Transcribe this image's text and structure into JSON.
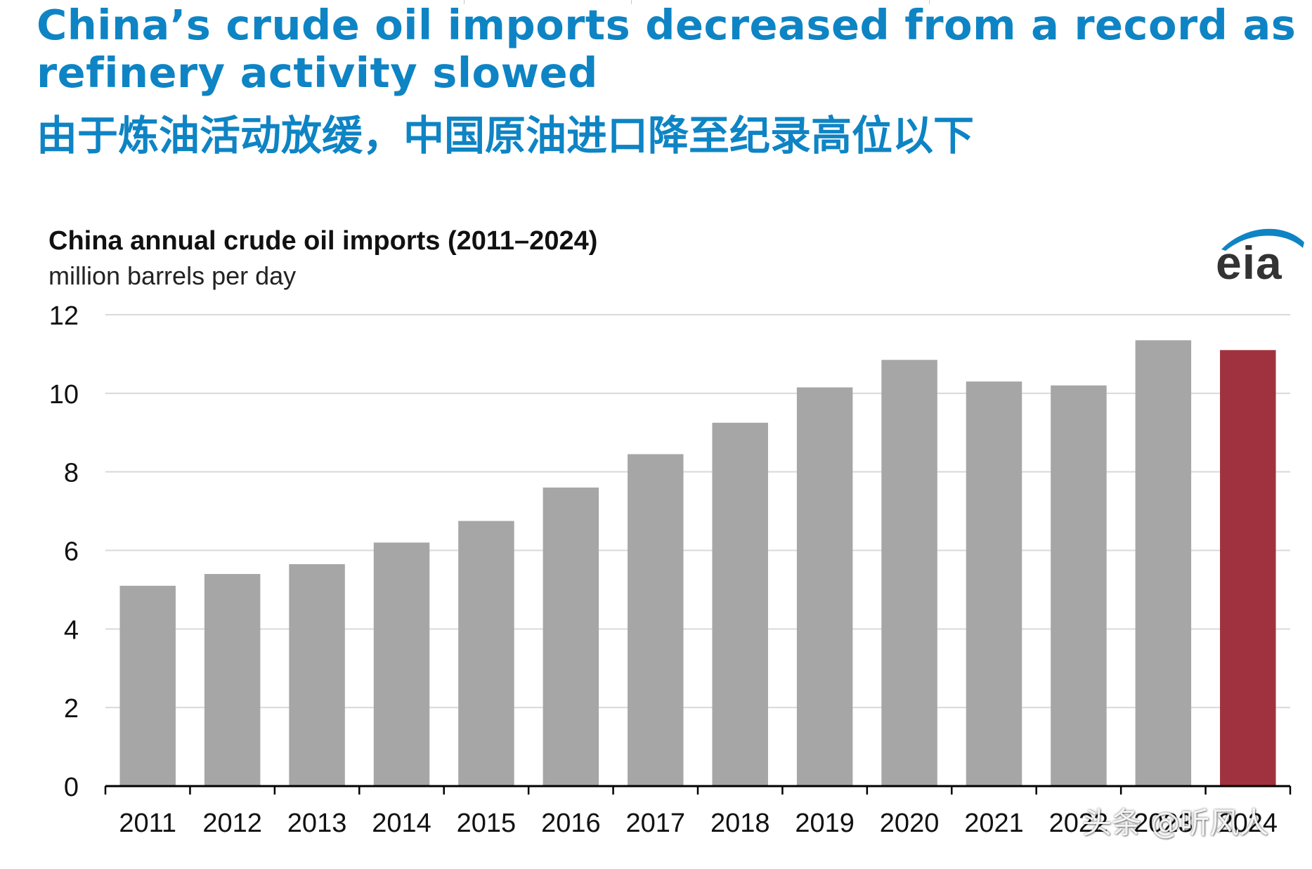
{
  "header": {
    "headline_en": "China’s crude oil imports decreased from a record as refinery activity slowed",
    "headline_zh": "由于炼油活动放缓，中国原油进口降至纪录高位以下"
  },
  "logo": {
    "text": "eia"
  },
  "watermark": {
    "text": "头条 @听风人"
  },
  "colors": {
    "headline": "#0e84c4",
    "bar_default": "#a6a6a6",
    "bar_highlight": "#a03240",
    "gridline": "#d9d9d9",
    "axis": "#000000"
  },
  "chart_data": {
    "type": "bar",
    "title": "China annual crude oil imports (2011–2024)",
    "subtitle": "million barrels per day",
    "categories": [
      "2011",
      "2012",
      "2013",
      "2014",
      "2015",
      "2016",
      "2017",
      "2018",
      "2019",
      "2020",
      "2021",
      "2022",
      "2023",
      "2024"
    ],
    "values": [
      5.1,
      5.4,
      5.65,
      6.2,
      6.75,
      7.6,
      8.45,
      9.25,
      10.15,
      10.85,
      10.3,
      10.2,
      11.35,
      11.1
    ],
    "highlight_index": 13,
    "ylim": [
      0,
      12
    ],
    "yticks": [
      "0",
      "2",
      "4",
      "6",
      "8",
      "10",
      "12"
    ],
    "grid": true,
    "legend": "none"
  }
}
